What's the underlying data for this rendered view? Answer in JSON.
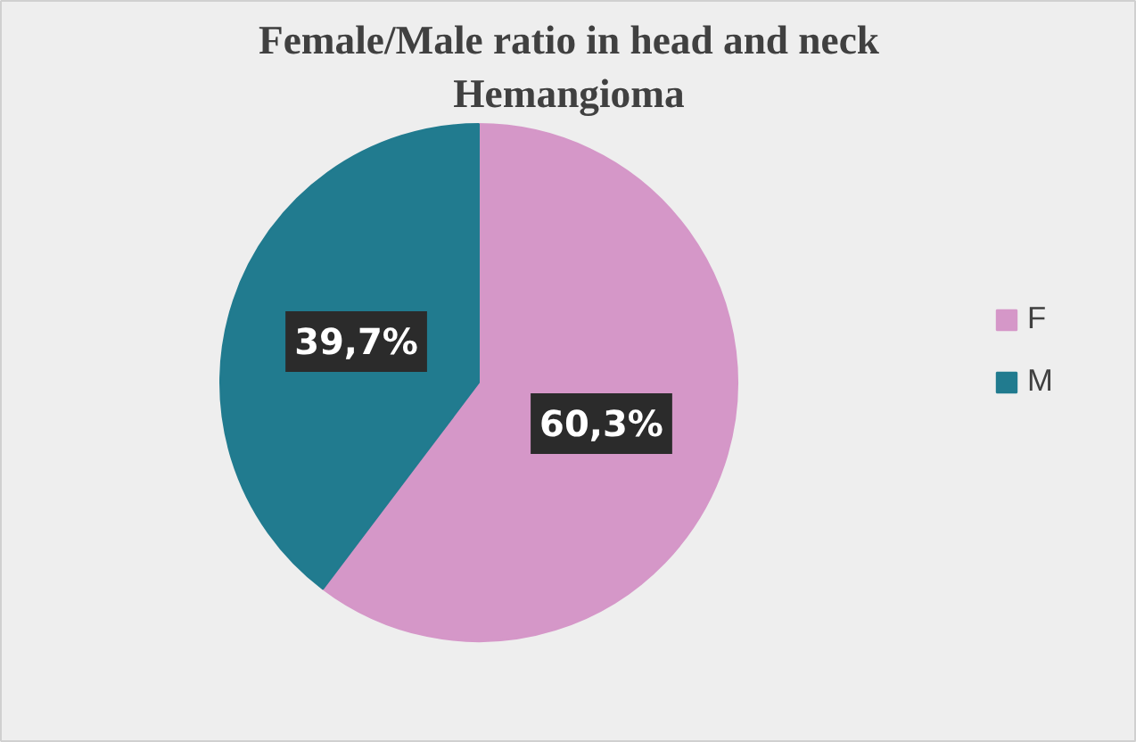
{
  "chart_data": {
    "type": "pie",
    "title": "Female/Male ratio in head and neck Hemangioma",
    "categories": [
      "F",
      "M"
    ],
    "values": [
      60.3,
      39.7
    ],
    "value_labels": [
      "60,3%",
      "39,7%"
    ],
    "colors": [
      "#d597c8",
      "#217b8f"
    ],
    "legend": "right"
  }
}
